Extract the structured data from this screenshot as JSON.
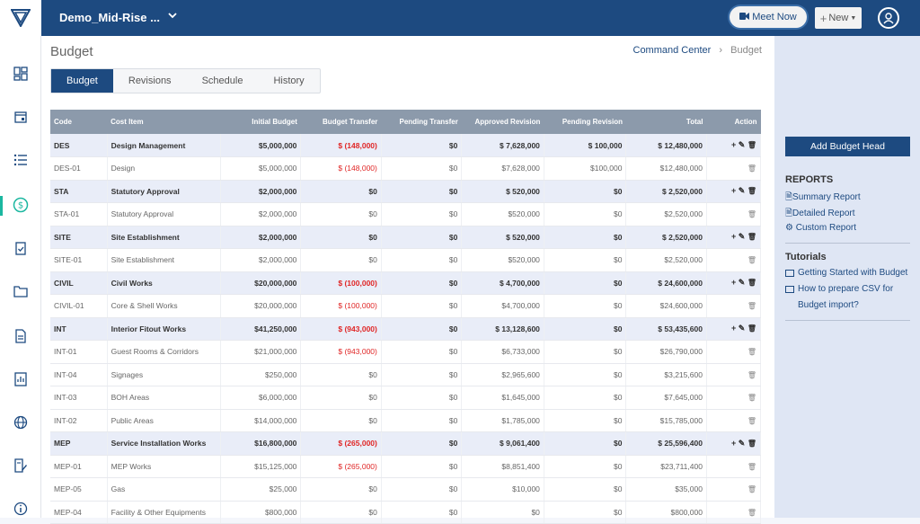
{
  "header": {
    "project_name": "Demo_Mid-Rise ...",
    "meet_label": "Meet Now",
    "new_label": "New"
  },
  "page": {
    "title": "Budget",
    "breadcrumb": [
      "Command Center",
      "Budget"
    ]
  },
  "tabs": [
    "Budget",
    "Revisions",
    "Schedule",
    "History"
  ],
  "table": {
    "columns": [
      "Code",
      "Cost Item",
      "Initial Budget",
      "Budget Transfer",
      "Pending Transfer",
      "Approved Revision",
      "Pending Revision",
      "Total",
      "Action"
    ],
    "rows": [
      {
        "group": true,
        "code": "DES",
        "item": "Design Management",
        "initial": "$5,000,000",
        "transfer": "$ (148,000)",
        "pending_transfer": "$0",
        "approved": "$ 7,628,000",
        "pending_rev": "$ 100,000",
        "total": "$ 12,480,000"
      },
      {
        "group": false,
        "code": "DES-01",
        "item": "Design",
        "initial": "$5,000,000",
        "transfer": "$ (148,000)",
        "pending_transfer": "$0",
        "approved": "$7,628,000",
        "pending_rev": "$100,000",
        "total": "$12,480,000"
      },
      {
        "group": true,
        "code": "STA",
        "item": "Statutory Approval",
        "initial": "$2,000,000",
        "transfer": "$0",
        "pending_transfer": "$0",
        "approved": "$ 520,000",
        "pending_rev": "$0",
        "total": "$ 2,520,000"
      },
      {
        "group": false,
        "code": "STA-01",
        "item": "Statutory Approval",
        "initial": "$2,000,000",
        "transfer": "$0",
        "pending_transfer": "$0",
        "approved": "$520,000",
        "pending_rev": "$0",
        "total": "$2,520,000"
      },
      {
        "group": true,
        "code": "SITE",
        "item": "Site Establishment",
        "initial": "$2,000,000",
        "transfer": "$0",
        "pending_transfer": "$0",
        "approved": "$ 520,000",
        "pending_rev": "$0",
        "total": "$ 2,520,000"
      },
      {
        "group": false,
        "code": "SITE-01",
        "item": "Site Establishment",
        "initial": "$2,000,000",
        "transfer": "$0",
        "pending_transfer": "$0",
        "approved": "$520,000",
        "pending_rev": "$0",
        "total": "$2,520,000"
      },
      {
        "group": true,
        "code": "CIVIL",
        "item": "Civil Works",
        "initial": "$20,000,000",
        "transfer": "$ (100,000)",
        "pending_transfer": "$0",
        "approved": "$ 4,700,000",
        "pending_rev": "$0",
        "total": "$ 24,600,000"
      },
      {
        "group": false,
        "code": "CIVIL-01",
        "item": "Core & Shell Works",
        "initial": "$20,000,000",
        "transfer": "$ (100,000)",
        "pending_transfer": "$0",
        "approved": "$4,700,000",
        "pending_rev": "$0",
        "total": "$24,600,000"
      },
      {
        "group": true,
        "code": "INT",
        "item": "Interior Fitout Works",
        "initial": "$41,250,000",
        "transfer": "$ (943,000)",
        "pending_transfer": "$0",
        "approved": "$ 13,128,600",
        "pending_rev": "$0",
        "total": "$ 53,435,600"
      },
      {
        "group": false,
        "code": "INT-01",
        "item": "Guest Rooms & Corridors",
        "initial": "$21,000,000",
        "transfer": "$ (943,000)",
        "pending_transfer": "$0",
        "approved": "$6,733,000",
        "pending_rev": "$0",
        "total": "$26,790,000"
      },
      {
        "group": false,
        "code": "INT-04",
        "item": "Signages",
        "initial": "$250,000",
        "transfer": "$0",
        "pending_transfer": "$0",
        "approved": "$2,965,600",
        "pending_rev": "$0",
        "total": "$3,215,600"
      },
      {
        "group": false,
        "code": "INT-03",
        "item": "BOH Areas",
        "initial": "$6,000,000",
        "transfer": "$0",
        "pending_transfer": "$0",
        "approved": "$1,645,000",
        "pending_rev": "$0",
        "total": "$7,645,000"
      },
      {
        "group": false,
        "code": "INT-02",
        "item": "Public Areas",
        "initial": "$14,000,000",
        "transfer": "$0",
        "pending_transfer": "$0",
        "approved": "$1,785,000",
        "pending_rev": "$0",
        "total": "$15,785,000"
      },
      {
        "group": true,
        "code": "MEP",
        "item": "Service Installation Works",
        "initial": "$16,800,000",
        "transfer": "$ (265,000)",
        "pending_transfer": "$0",
        "approved": "$ 9,061,400",
        "pending_rev": "$0",
        "total": "$ 25,596,400"
      },
      {
        "group": false,
        "code": "MEP-01",
        "item": "MEP Works",
        "initial": "$15,125,000",
        "transfer": "$ (265,000)",
        "pending_transfer": "$0",
        "approved": "$8,851,400",
        "pending_rev": "$0",
        "total": "$23,711,400"
      },
      {
        "group": false,
        "code": "MEP-05",
        "item": "Gas",
        "initial": "$25,000",
        "transfer": "$0",
        "pending_transfer": "$0",
        "approved": "$10,000",
        "pending_rev": "$0",
        "total": "$35,000"
      },
      {
        "group": false,
        "code": "MEP-04",
        "item": "Facility & Other Equipments",
        "initial": "$800,000",
        "transfer": "$0",
        "pending_transfer": "$0",
        "approved": "$0",
        "pending_rev": "$0",
        "total": "$800,000"
      }
    ]
  },
  "right_panel": {
    "add_button": "Add Budget Head",
    "reports_heading": "REPORTS",
    "reports": [
      "Summary Report",
      "Detailed Report",
      "Custom Report"
    ],
    "tutorials_heading": "Tutorials",
    "tutorials": [
      "Getting Started with Budget",
      "How to prepare CSV for Budget import?"
    ]
  },
  "colors": {
    "brand": "#1d4a80",
    "accent": "#1bb7a0",
    "negative": "#e02626"
  }
}
